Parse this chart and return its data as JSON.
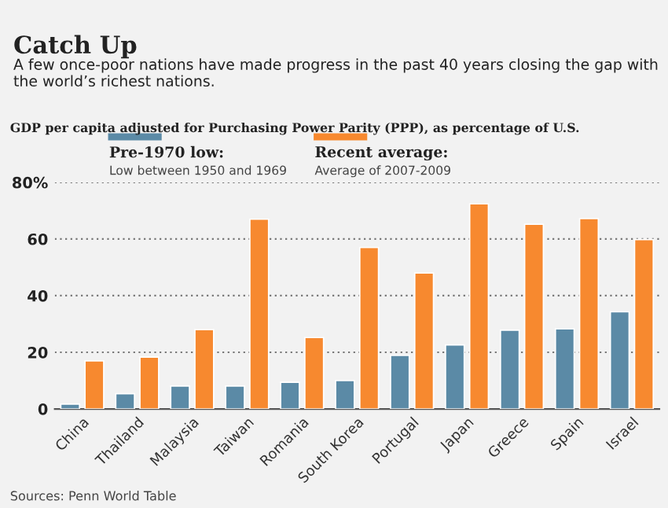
{
  "chart_data": {
    "type": "bar",
    "title": "Catch Up",
    "subtitle": "A few once-poor nations have made progress in the past 40 years closing the gap with the world’s richest nations.",
    "categories": [
      "China",
      "Thailand",
      "Malaysia",
      "Taiwan",
      "Romania",
      "South Korea",
      "Portugal",
      "Japan",
      "Greece",
      "Spain",
      "Israel"
    ],
    "series": [
      {
        "name": "Pre-1970 low:",
        "color": "#5b8aa6",
        "values": [
          1.7,
          5.4,
          8.1,
          8.1,
          9.4,
          10,
          18.9,
          22.6,
          27.8,
          28.3,
          34.3
        ]
      },
      {
        "name": "Recent average:",
        "color": "#f7892f",
        "values": [
          17,
          18.3,
          28,
          67,
          25.2,
          57,
          48,
          72.4,
          65.2,
          67.2,
          59.8
        ]
      }
    ],
    "ylim": [
      0,
      80
    ],
    "yticks": [
      0,
      20,
      40,
      60,
      {
        "value": 80,
        "label": "80%"
      }
    ],
    "grid": "y",
    "legend": "top left",
    "annotations": [
      "GDP per capita adjusted for Purchasing Power Parity (PPP), as percentage of U.S.",
      "Low between 1950 and 1969",
      "Average of 2007-2009",
      "Sources: Penn World Table"
    ]
  }
}
